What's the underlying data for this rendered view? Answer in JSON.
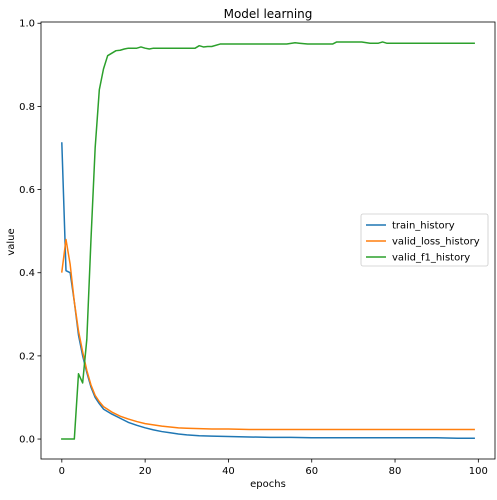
{
  "chart_data": {
    "type": "line",
    "title": "Model learning",
    "xlabel": "epochs",
    "ylabel": "value",
    "xlim": [
      -5,
      104
    ],
    "ylim": [
      -0.048,
      1.003
    ],
    "xticks": [
      0,
      20,
      40,
      60,
      80,
      100
    ],
    "yticks": [
      0.0,
      0.2,
      0.4,
      0.6,
      0.8,
      1.0
    ],
    "ytick_labels": [
      "0.0",
      "0.2",
      "0.4",
      "0.6",
      "0.8",
      "1.0"
    ],
    "grid": false,
    "legend_position": "center-right",
    "series": [
      {
        "name": "train_history",
        "color": "#1f77b4",
        "x": [
          0,
          1,
          2,
          3,
          4,
          5,
          6,
          7,
          8,
          9,
          10,
          12,
          14,
          16,
          18,
          20,
          22,
          24,
          26,
          28,
          30,
          33,
          36,
          40,
          45,
          50,
          55,
          60,
          65,
          70,
          75,
          80,
          85,
          90,
          95,
          99
        ],
        "y": [
          0.712,
          0.405,
          0.4,
          0.33,
          0.25,
          0.2,
          0.16,
          0.125,
          0.1,
          0.085,
          0.072,
          0.06,
          0.05,
          0.04,
          0.033,
          0.027,
          0.022,
          0.018,
          0.015,
          0.012,
          0.01,
          0.008,
          0.007,
          0.006,
          0.005,
          0.004,
          0.004,
          0.003,
          0.003,
          0.003,
          0.003,
          0.003,
          0.003,
          0.003,
          0.002,
          0.002
        ]
      },
      {
        "name": "valid_loss_history",
        "color": "#ff7f0e",
        "x": [
          0,
          1,
          2,
          3,
          4,
          5,
          6,
          7,
          8,
          9,
          10,
          12,
          14,
          16,
          18,
          20,
          22,
          24,
          26,
          28,
          30,
          33,
          36,
          40,
          45,
          50,
          55,
          60,
          65,
          70,
          75,
          80,
          85,
          90,
          95,
          99
        ],
        "y": [
          0.402,
          0.48,
          0.42,
          0.33,
          0.26,
          0.21,
          0.165,
          0.13,
          0.105,
          0.09,
          0.078,
          0.065,
          0.055,
          0.048,
          0.042,
          0.037,
          0.034,
          0.031,
          0.029,
          0.027,
          0.026,
          0.025,
          0.024,
          0.024,
          0.023,
          0.023,
          0.023,
          0.023,
          0.023,
          0.023,
          0.023,
          0.023,
          0.023,
          0.023,
          0.023,
          0.023
        ]
      },
      {
        "name": "valid_f1_history",
        "color": "#2ca02c",
        "x": [
          0,
          1,
          2,
          3,
          4,
          5,
          6,
          7,
          8,
          9,
          10,
          11,
          12,
          13,
          14,
          15,
          16,
          18,
          19,
          20,
          21,
          22,
          25,
          28,
          30,
          32,
          33,
          34,
          35,
          36,
          38,
          40,
          45,
          50,
          54,
          56,
          57,
          59,
          62,
          64,
          65,
          66,
          67,
          70,
          72,
          74,
          76,
          77,
          78,
          80,
          85,
          90,
          95,
          99
        ],
        "y": [
          0.0,
          0.0,
          0.0,
          0.0,
          0.157,
          0.135,
          0.24,
          0.48,
          0.7,
          0.84,
          0.89,
          0.922,
          0.928,
          0.934,
          0.935,
          0.938,
          0.94,
          0.94,
          0.943,
          0.94,
          0.938,
          0.94,
          0.94,
          0.94,
          0.94,
          0.94,
          0.946,
          0.943,
          0.944,
          0.944,
          0.95,
          0.95,
          0.95,
          0.95,
          0.95,
          0.953,
          0.952,
          0.95,
          0.95,
          0.95,
          0.95,
          0.955,
          0.955,
          0.955,
          0.955,
          0.952,
          0.952,
          0.955,
          0.952,
          0.952,
          0.952,
          0.952,
          0.952,
          0.952
        ]
      }
    ]
  }
}
